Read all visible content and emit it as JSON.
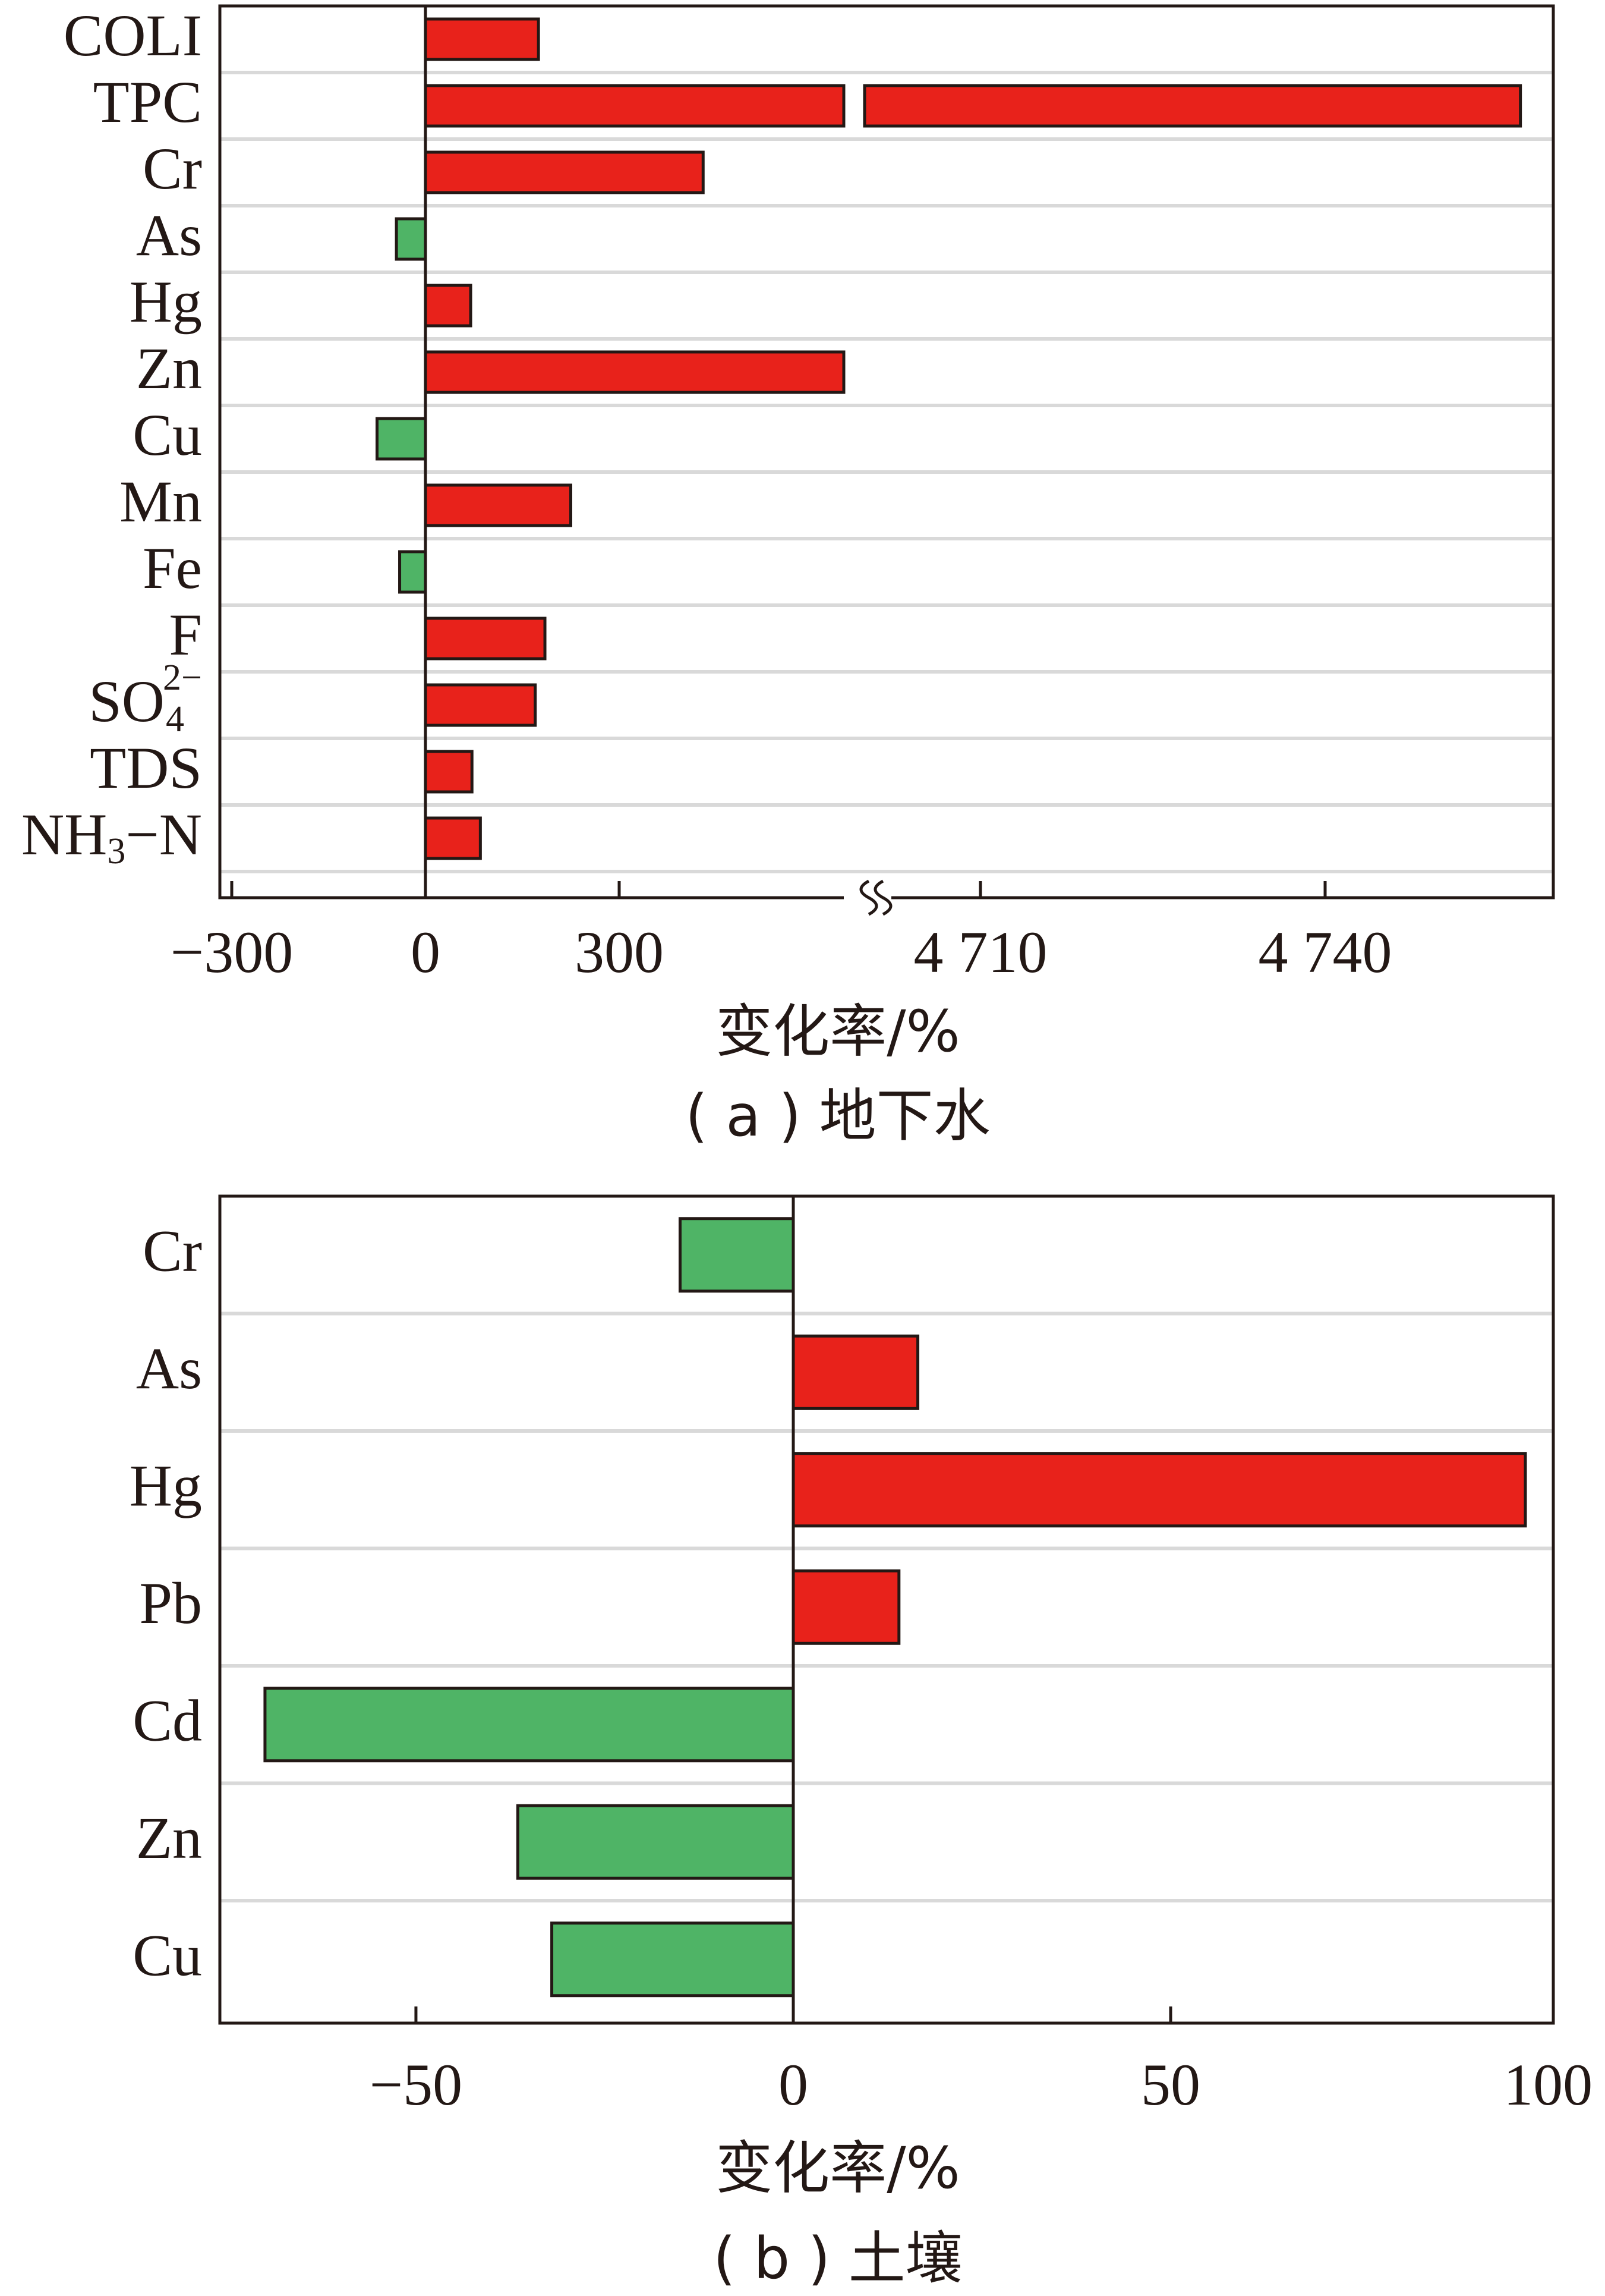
{
  "colors": {
    "positive": "#e8221b",
    "negative": "#4fb466"
  },
  "chart_data": [
    {
      "type": "bar",
      "orientation": "horizontal",
      "axis_break": true,
      "categories": [
        "COLI",
        "TPC",
        "Cr",
        "As",
        "Hg",
        "Zn",
        "Cu",
        "Mn",
        "Fe",
        "F",
        "SO42−",
        "TDS",
        "NH3−N"
      ],
      "values": [
        175,
        4757,
        430,
        -45,
        70,
        595,
        -75,
        225,
        -40,
        185,
        170,
        72,
        85
      ],
      "xlabel": "变化率/%",
      "xticks": [
        "−300",
        "0",
        "300",
        "4 710",
        "4 740"
      ],
      "caption": "( a ) 地下水",
      "grid": true
    },
    {
      "type": "bar",
      "orientation": "horizontal",
      "categories": [
        "Cr",
        "As",
        "Hg",
        "Pb",
        "Cd",
        "Zn",
        "Cu"
      ],
      "values": [
        -15,
        16.5,
        97,
        14,
        -70,
        -36.5,
        -32
      ],
      "xlabel": "变化率/%",
      "xlim": [
        -76,
        101
      ],
      "xticks": [
        "−50",
        "0",
        "50",
        "100"
      ],
      "caption": "( b ) 土壤",
      "grid": true
    }
  ]
}
